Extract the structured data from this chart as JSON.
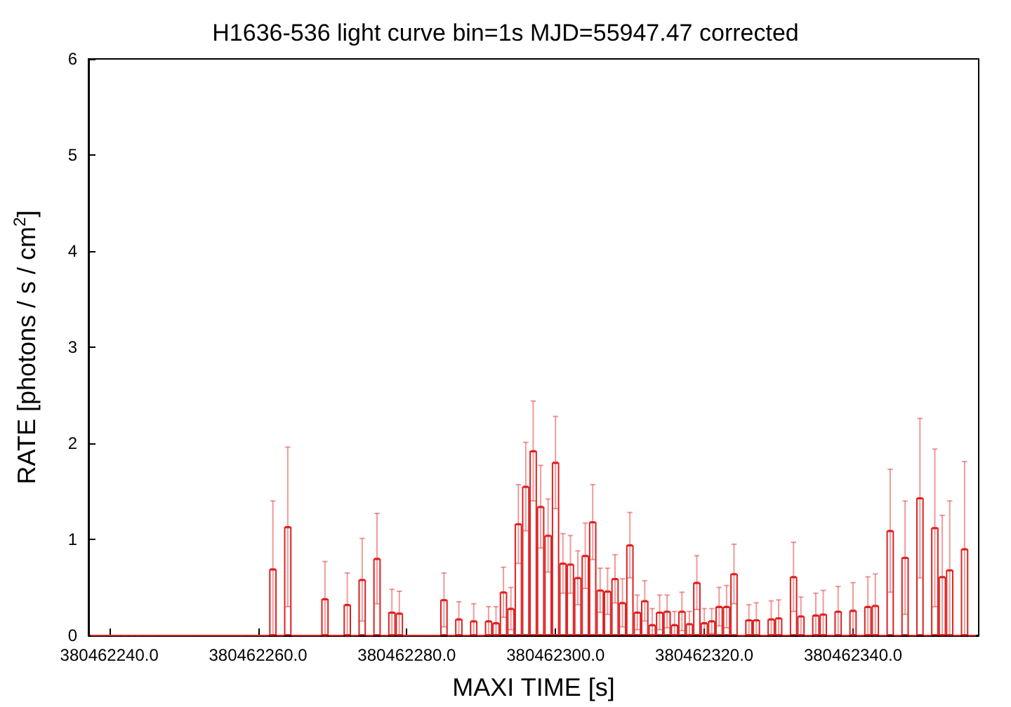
{
  "chart_data": {
    "type": "bar",
    "title": "H1636-536 light curve bin=1s MJD=55947.47 corrected",
    "xlabel": "MAXI TIME [s]",
    "ylabel": "RATE [photons / s / cm$^{2}$]",
    "x": [
      380462238,
      380462239,
      380462240,
      380462241,
      380462242,
      380462243,
      380462244,
      380462245,
      380462246,
      380462247,
      380462248,
      380462249,
      380462250,
      380462251,
      380462252,
      380462253,
      380462254,
      380462255,
      380462256,
      380462257,
      380462258,
      380462259,
      380462260,
      380462261,
      380462262,
      380462263,
      380462264,
      380462265,
      380462266,
      380462267,
      380462268,
      380462269,
      380462270,
      380462271,
      380462272,
      380462273,
      380462274,
      380462275,
      380462276,
      380462277,
      380462278,
      380462279,
      380462280,
      380462281,
      380462282,
      380462283,
      380462284,
      380462285,
      380462286,
      380462287,
      380462288,
      380462289,
      380462290,
      380462291,
      380462292,
      380462293,
      380462294,
      380462295,
      380462296,
      380462297,
      380462298,
      380462299,
      380462300,
      380462301,
      380462302,
      380462303,
      380462304,
      380462305,
      380462306,
      380462307,
      380462308,
      380462309,
      380462310,
      380462311,
      380462312,
      380462313,
      380462314,
      380462315,
      380462316,
      380462317,
      380462318,
      380462319,
      380462320,
      380462321,
      380462322,
      380462323,
      380462324,
      380462325,
      380462326,
      380462327,
      380462328,
      380462329,
      380462330,
      380462331,
      380462332,
      380462333,
      380462334,
      380462335,
      380462336,
      380462337,
      380462338,
      380462339,
      380462340,
      380462341,
      380462342,
      380462343,
      380462344,
      380462345,
      380462346,
      380462347,
      380462348,
      380462349,
      380462350,
      380462351,
      380462352,
      380462353,
      380462354,
      380462355,
      380462356
    ],
    "values": [
      0,
      0,
      0,
      0,
      0,
      0,
      0,
      0,
      0,
      0,
      0,
      0,
      0,
      0,
      0,
      0,
      0,
      0,
      0,
      0,
      0,
      0,
      0,
      0,
      0.69,
      0,
      1.13,
      0,
      0,
      0,
      0,
      0.38,
      0,
      0,
      0.32,
      0,
      0.58,
      0,
      0.8,
      0,
      0.24,
      0.23,
      0,
      0,
      0,
      0,
      0,
      0.37,
      0,
      0.17,
      0,
      0.15,
      0,
      0.15,
      0.13,
      0.45,
      0.28,
      1.16,
      1.55,
      1.92,
      1.34,
      1.04,
      1.8,
      0.75,
      0.74,
      0.6,
      0.83,
      1.18,
      0.47,
      0.46,
      0.59,
      0.34,
      0.94,
      0.24,
      0.36,
      0.11,
      0.24,
      0.25,
      0.11,
      0.25,
      0.12,
      0.55,
      0.13,
      0.15,
      0.3,
      0.3,
      0.64,
      0,
      0.16,
      0.16,
      0,
      0.17,
      0.18,
      0,
      0.61,
      0.2,
      0,
      0.21,
      0.22,
      0,
      0.25,
      0,
      0.26,
      0,
      0.3,
      0.31,
      0,
      1.09,
      0,
      0.81,
      0,
      1.43,
      0,
      1.12,
      0.61,
      0.68,
      0,
      0.9,
      0
    ],
    "errors": [
      null,
      null,
      null,
      null,
      null,
      null,
      null,
      null,
      null,
      null,
      null,
      null,
      null,
      null,
      null,
      null,
      null,
      null,
      null,
      null,
      null,
      null,
      null,
      null,
      [
        0,
        1.4
      ],
      null,
      0.83,
      null,
      null,
      null,
      null,
      0.39,
      null,
      null,
      0.33,
      null,
      0.43,
      null,
      0.47,
      null,
      0.24,
      0.23,
      null,
      null,
      null,
      null,
      null,
      0.28,
      null,
      [
        0,
        0.35
      ],
      null,
      [
        0,
        0.33
      ],
      null,
      0.15,
      [
        0,
        0.3
      ],
      0.26,
      0.22,
      0.41,
      0.46,
      0.52,
      0.43,
      0.38,
      0.48,
      0.31,
      0.3,
      0.28,
      0.34,
      0.39,
      0.23,
      0.24,
      0.25,
      0.25,
      0.34,
      0.18,
      0.21,
      [
        0,
        0.28
      ],
      0.18,
      0.17,
      [
        0,
        0.25
      ],
      0.2,
      [
        0,
        0.25
      ],
      0.28,
      [
        0,
        0.28
      ],
      0.13,
      0.2,
      0.22,
      0.31,
      null,
      0.16,
      [
        0,
        0.34
      ],
      null,
      [
        0,
        0.36
      ],
      [
        0,
        0.37
      ],
      null,
      0.36,
      0.2,
      null,
      [
        0,
        0.44
      ],
      [
        0,
        0.47
      ],
      null,
      [
        0,
        0.51
      ],
      null,
      [
        0,
        0.55
      ],
      null,
      [
        0,
        0.61
      ],
      [
        0,
        0.64
      ],
      null,
      0.64,
      null,
      0.59,
      null,
      0.83,
      null,
      0.82,
      [
        0,
        1.25
      ],
      [
        0,
        1.4
      ],
      null,
      [
        0,
        1.81
      ],
      null
    ],
    "color": "#dd2222",
    "xlim": [
      380462237.2,
      380462356.9
    ],
    "xticks": [
      {
        "value": 380462240,
        "label": "380462240.0"
      },
      {
        "value": 380462260,
        "label": "380462260.0"
      },
      {
        "value": 380462280,
        "label": "380462280.0"
      },
      {
        "value": 380462300,
        "label": "380462300.0"
      },
      {
        "value": 380462320,
        "label": "380462320.0"
      },
      {
        "value": 380462340,
        "label": "380462340.0"
      }
    ],
    "ylim": [
      0,
      6
    ],
    "yticks": [
      0,
      1,
      2,
      3,
      4,
      5,
      6
    ]
  }
}
